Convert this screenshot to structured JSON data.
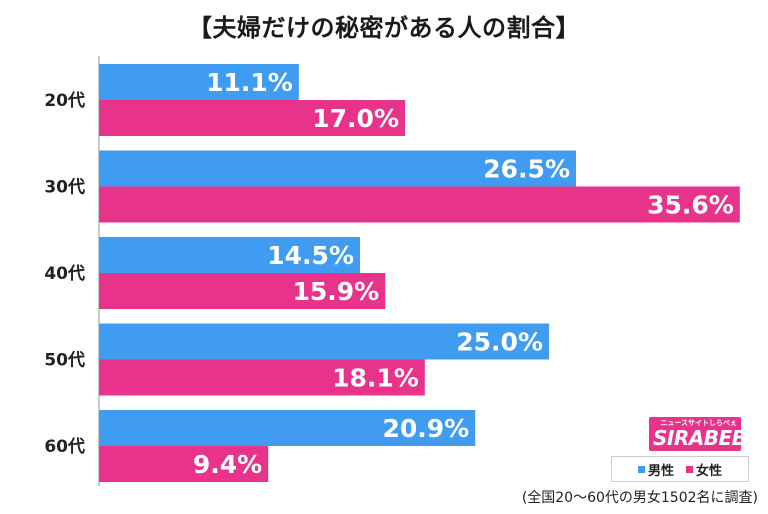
{
  "chart_data": {
    "type": "bar",
    "orientation": "horizontal",
    "title": "【夫婦だけの秘密がある人の割合】",
    "categories": [
      "20代",
      "30代",
      "40代",
      "50代",
      "60代"
    ],
    "series": [
      {
        "name": "男性",
        "color": "#3f9cf0",
        "values": [
          11.1,
          26.5,
          14.5,
          25.0,
          20.9
        ],
        "labels": [
          "11.1%",
          "26.5%",
          "14.5%",
          "25.0%",
          "20.9%"
        ]
      },
      {
        "name": "女性",
        "color": "#e8338b",
        "values": [
          17.0,
          35.6,
          15.9,
          18.1,
          9.4
        ],
        "labels": [
          "17.0%",
          "35.6%",
          "15.9%",
          "18.1%",
          "9.4%"
        ]
      }
    ],
    "xlim": [
      0,
      36
    ],
    "grid": false,
    "legend_position": "bottom-right",
    "note": "(全国20～60代の男女1502名に調査)"
  },
  "logo": {
    "small": "ニュースサイトしらべぇ",
    "main": "SIRABEE"
  }
}
